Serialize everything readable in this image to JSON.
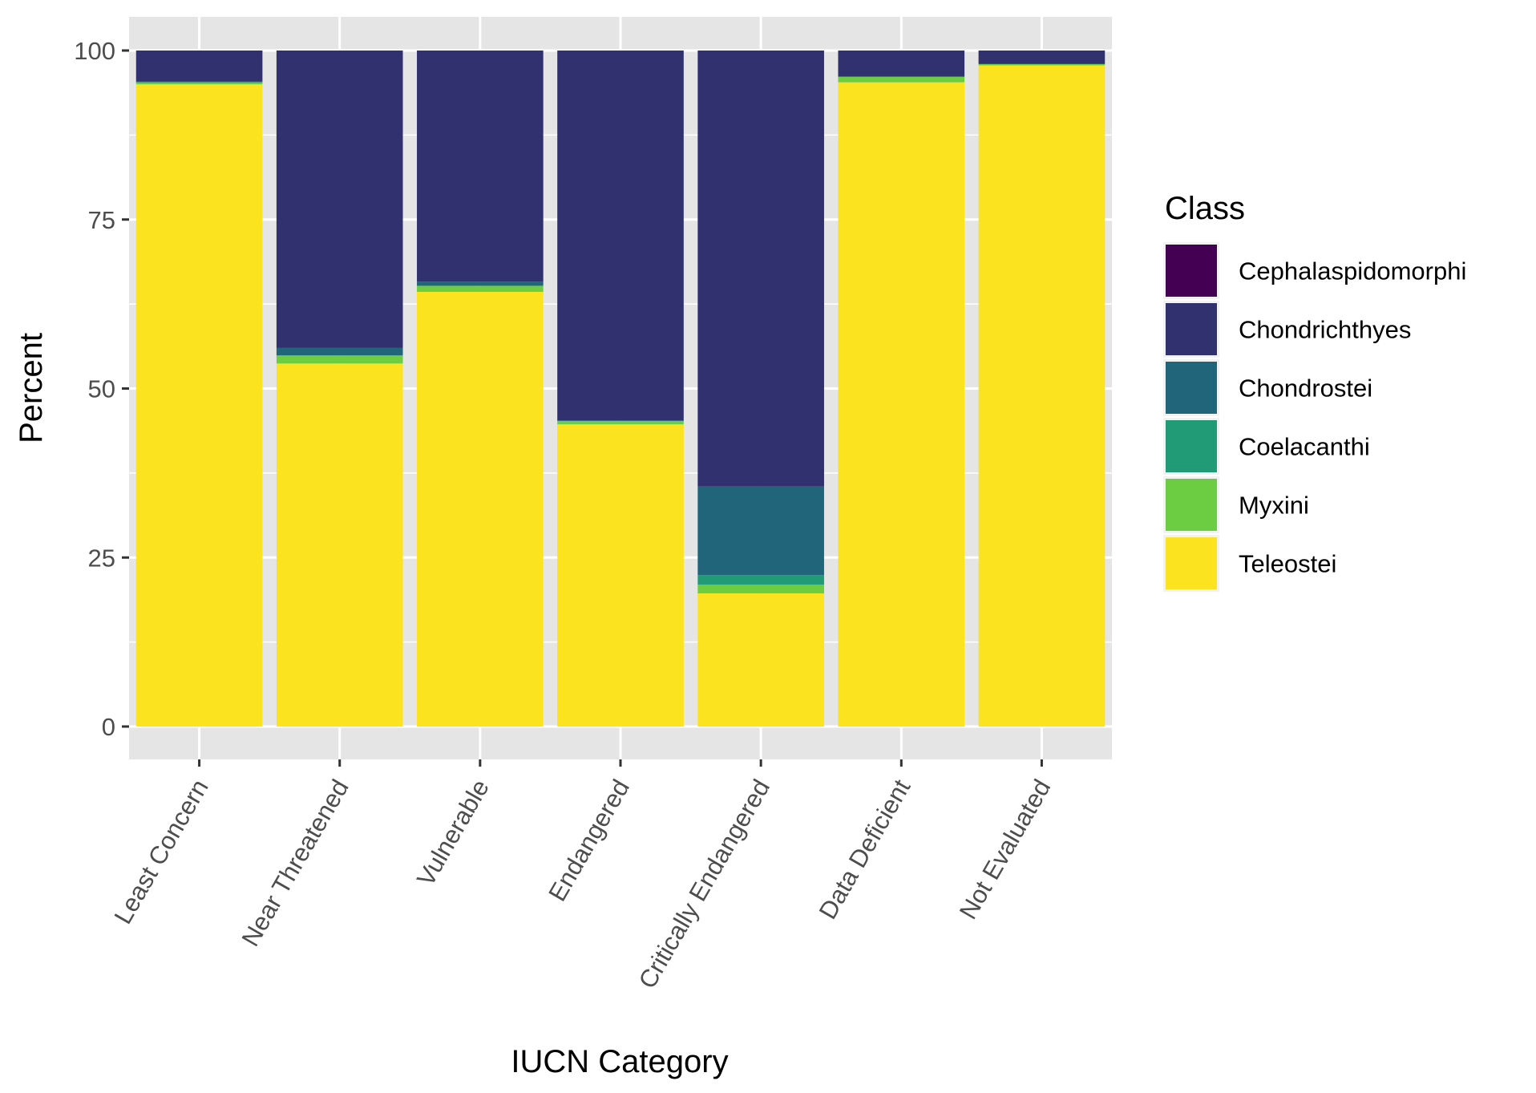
{
  "chart_data": {
    "type": "bar",
    "stacked": true,
    "xlabel": "IUCN Category",
    "ylabel": "Percent",
    "ylim": [
      0,
      100
    ],
    "yticks": [
      0,
      25,
      50,
      75,
      100
    ],
    "grid": true,
    "legend_title": "Class",
    "legend_position": "right",
    "categories": [
      "Least Concern",
      "Near Threatened",
      "Vulnerable",
      "Endangered",
      "Critically Endangered",
      "Data Deficient",
      "Not Evaluated"
    ],
    "series": [
      {
        "name": "Cephalaspidomorphi",
        "color": "#440154",
        "values": [
          0,
          0,
          0,
          0,
          0,
          0,
          0
        ]
      },
      {
        "name": "Chondrichthyes",
        "color": "#31316F",
        "values": [
          4.6,
          44.0,
          34.2,
          54.7,
          64.5,
          3.8,
          2.0
        ]
      },
      {
        "name": "Chondrostei",
        "color": "#21657B",
        "values": [
          0.1,
          1.1,
          0.6,
          0.1,
          13.1,
          0.1,
          0
        ]
      },
      {
        "name": "Coelacanthi",
        "color": "#219A76",
        "values": [
          0,
          0,
          0,
          0,
          1.4,
          0,
          0
        ]
      },
      {
        "name": "Myxini",
        "color": "#6CCC42",
        "values": [
          0.3,
          1.2,
          0.9,
          0.5,
          1.3,
          0.8,
          0.2
        ]
      },
      {
        "name": "Teleostei",
        "color": "#FBE31F",
        "values": [
          95.0,
          53.7,
          64.3,
          44.7,
          19.7,
          95.3,
          97.8
        ]
      }
    ]
  }
}
